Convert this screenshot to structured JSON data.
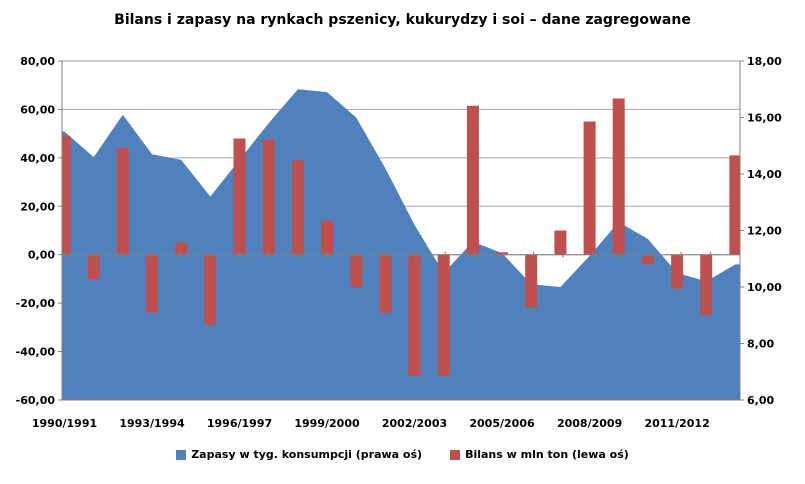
{
  "title": "Bilans i zapasy na rynkach pszenicy, kukurydzy i soi – dane zagregowane",
  "legend": {
    "stocks": "Zapasy w tyg. konsumpcji (prawa oś)",
    "balance": "Bilans w mln ton (lewa oś)"
  },
  "colors": {
    "area": "#4F81BD",
    "bars": "#C0504D",
    "gridline": "#A6A6A6",
    "axis": "#808080",
    "text": "#000000",
    "background": "#FFFFFF"
  },
  "chart_data": {
    "type": "combo",
    "subtypes": [
      "area",
      "bar"
    ],
    "title": "Bilans i zapasy na rynkach pszenicy, kukurydzy i soi – dane zagregowane",
    "categories": [
      "1990/1991",
      "1991/1992",
      "1992/1993",
      "1993/1994",
      "1994/1995",
      "1995/1996",
      "1996/1997",
      "1997/1998",
      "1998/1999",
      "1999/2000",
      "2000/2001",
      "2001/2002",
      "2002/2003",
      "2003/2004",
      "2004/2005",
      "2005/2006",
      "2006/2007",
      "2007/2008",
      "2008/2009",
      "2009/2010",
      "2010/2011",
      "2011/2012",
      "2012/2013",
      "2013/2014"
    ],
    "series": [
      {
        "name": "Zapasy w tyg. konsumpcji (prawa oś)",
        "type": "area",
        "axis": "right",
        "color": "#4F81BD",
        "values": [
          15.5,
          14.6,
          16.1,
          14.7,
          14.5,
          13.2,
          14.5,
          15.8,
          17.0,
          16.9,
          16.0,
          14.2,
          12.2,
          10.5,
          11.6,
          11.2,
          10.1,
          10.0,
          11.1,
          12.3,
          11.7,
          10.5,
          10.2,
          10.8
        ]
      },
      {
        "name": "Bilans w mln ton (lewa oś)",
        "type": "bar",
        "axis": "left",
        "color": "#C0504D",
        "values": [
          49,
          -10,
          44,
          -24,
          5,
          -29,
          48,
          47.5,
          39,
          14,
          -13.5,
          -24,
          -50,
          -50,
          61.5,
          1,
          -22,
          10,
          55,
          64.5,
          -4,
          -14,
          -25,
          41
        ]
      }
    ],
    "left_axis": {
      "min": -60,
      "max": 80,
      "step": 20,
      "tick_labels": [
        "80,00",
        "60,00",
        "40,00",
        "20,00",
        "0,00",
        "-20,00",
        "-40,00",
        "-60,00"
      ]
    },
    "right_axis": {
      "min": 6,
      "max": 18,
      "step": 2,
      "tick_labels": [
        "18,00",
        "16,00",
        "14,00",
        "12,00",
        "10,00",
        "8,00",
        "6,00"
      ]
    },
    "x_tick_labels": [
      "1990/1991",
      "1993/1994",
      "1996/1997",
      "1999/2000",
      "2002/2003",
      "2005/2006",
      "2008/2009",
      "2011/2012"
    ],
    "x_label_interval": 3,
    "grid": true,
    "legend_position": "bottom"
  }
}
